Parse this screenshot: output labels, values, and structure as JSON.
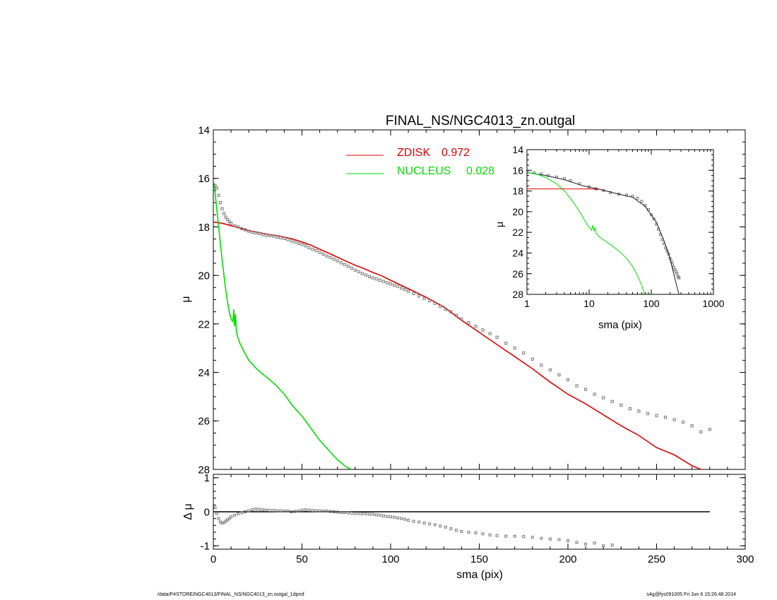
{
  "chart_data": [
    {
      "type": "line",
      "title": "FINAL_NS/NGC4013_zn.outgal",
      "xlabel": "",
      "ylabel": "μ",
      "xlim": [
        0,
        300
      ],
      "ylim": [
        28,
        14
      ],
      "y_inverted": true,
      "xticks": [
        "0",
        "50",
        "100",
        "150",
        "200",
        "250",
        "300"
      ],
      "yticks": [
        "14",
        "16",
        "18",
        "20",
        "22",
        "24",
        "26",
        "28"
      ],
      "legend_position": "top-center",
      "legend": [
        {
          "name": "ZDISK",
          "value": "0.972",
          "color": "#e00000"
        },
        {
          "name": "NUCLEUS",
          "value": "0.028",
          "color": "#00dd00"
        }
      ],
      "series": [
        {
          "name": "ZDISK",
          "style": "line",
          "color": "#e00000",
          "x": [
            0,
            5,
            10,
            15,
            20,
            25,
            30,
            35,
            40,
            45,
            50,
            55,
            60,
            65,
            70,
            75,
            80,
            85,
            90,
            95,
            100,
            110,
            120,
            130,
            140,
            150,
            160,
            170,
            180,
            190,
            200,
            210,
            220,
            230,
            240,
            250,
            260,
            270,
            275
          ],
          "y": [
            17.8,
            17.85,
            17.95,
            18.05,
            18.15,
            18.22,
            18.3,
            18.35,
            18.42,
            18.5,
            18.62,
            18.75,
            18.92,
            19.08,
            19.25,
            19.42,
            19.58,
            19.72,
            19.88,
            20.02,
            20.2,
            20.55,
            20.9,
            21.3,
            21.85,
            22.35,
            22.85,
            23.35,
            23.85,
            24.4,
            24.9,
            25.3,
            25.75,
            26.2,
            26.6,
            27.1,
            27.4,
            27.85,
            28.0
          ]
        },
        {
          "name": "NUCLEUS",
          "style": "line",
          "color": "#00dd00",
          "x": [
            0.5,
            1,
            2,
            3,
            4,
            5,
            6,
            7,
            8,
            9,
            10,
            11,
            11.5,
            12,
            12.5,
            13,
            14,
            15,
            17,
            20,
            25,
            30,
            35,
            40,
            45,
            50,
            55,
            60,
            65,
            70,
            75,
            78
          ],
          "y": [
            16.2,
            16.6,
            17.3,
            18.0,
            18.7,
            19.4,
            20.0,
            20.6,
            21.1,
            21.5,
            21.8,
            21.9,
            21.4,
            22.1,
            21.6,
            22.3,
            22.6,
            22.8,
            23.1,
            23.5,
            23.9,
            24.2,
            24.5,
            24.9,
            25.4,
            25.8,
            26.3,
            26.8,
            27.2,
            27.6,
            27.9,
            28.0
          ]
        },
        {
          "name": "",
          "style": "points",
          "color": "#777777",
          "x": [
            1,
            2,
            3,
            4,
            5,
            6,
            7,
            8,
            9,
            10,
            12,
            14,
            16,
            18,
            20,
            22,
            24,
            26,
            28,
            30,
            32,
            34,
            36,
            38,
            40,
            42,
            44,
            46,
            48,
            50,
            52,
            54,
            56,
            58,
            60,
            62,
            64,
            66,
            68,
            70,
            72,
            74,
            76,
            78,
            80,
            82,
            84,
            86,
            88,
            90,
            92,
            94,
            96,
            98,
            100,
            102,
            104,
            106,
            108,
            110,
            113,
            116,
            119,
            122,
            125,
            128,
            131,
            134,
            137,
            140,
            144,
            148,
            152,
            156,
            160,
            165,
            170,
            175,
            180,
            185,
            190,
            195,
            200,
            205,
            210,
            215,
            220,
            225,
            230,
            235,
            240,
            245,
            250,
            255,
            260,
            265,
            270,
            275,
            280
          ],
          "y": [
            16.3,
            16.4,
            16.7,
            17.0,
            17.25,
            17.45,
            17.6,
            17.7,
            17.78,
            17.85,
            17.95,
            18.0,
            18.07,
            18.12,
            18.18,
            18.22,
            18.25,
            18.28,
            18.32,
            18.35,
            18.36,
            18.38,
            18.42,
            18.45,
            18.48,
            18.52,
            18.58,
            18.62,
            18.68,
            18.72,
            18.78,
            18.86,
            18.92,
            18.98,
            19.05,
            19.12,
            19.2,
            19.26,
            19.33,
            19.4,
            19.48,
            19.55,
            19.62,
            19.7,
            19.78,
            19.85,
            19.92,
            19.98,
            20.05,
            20.1,
            20.15,
            20.2,
            20.25,
            20.3,
            20.35,
            20.4,
            20.45,
            20.52,
            20.58,
            20.65,
            20.75,
            20.85,
            20.95,
            21.05,
            21.15,
            21.28,
            21.4,
            21.5,
            21.65,
            21.8,
            21.95,
            22.1,
            22.25,
            22.4,
            22.55,
            22.8,
            23.0,
            23.2,
            23.45,
            23.7,
            23.9,
            24.1,
            24.3,
            24.55,
            24.7,
            24.9,
            25.05,
            25.2,
            25.35,
            25.5,
            25.6,
            25.7,
            25.78,
            25.85,
            25.95,
            26.05,
            26.2,
            26.45,
            26.35
          ]
        }
      ]
    },
    {
      "type": "line",
      "title": "",
      "xlabel": "sma (pix)",
      "ylabel": "Δ μ",
      "xlim": [
        0,
        300
      ],
      "ylim": [
        -1.1,
        1.1
      ],
      "xticks": [
        "0",
        "50",
        "100",
        "150",
        "200",
        "250",
        "300"
      ],
      "yticks": [
        "1",
        "0",
        "-1"
      ],
      "series": [
        {
          "name": "",
          "style": "line",
          "color": "#000000",
          "x": [
            0,
            280
          ],
          "y": [
            0,
            0
          ]
        },
        {
          "name": "",
          "style": "points",
          "color": "#777777",
          "x": [
            1,
            2,
            3,
            4,
            5,
            6,
            7,
            8,
            9,
            10,
            12,
            14,
            16,
            18,
            20,
            22,
            24,
            26,
            28,
            30,
            32,
            34,
            36,
            38,
            40,
            42,
            44,
            46,
            48,
            50,
            52,
            54,
            56,
            58,
            60,
            62,
            64,
            66,
            68,
            70,
            72,
            74,
            76,
            78,
            80,
            82,
            84,
            86,
            88,
            90,
            92,
            94,
            96,
            98,
            100,
            102,
            104,
            106,
            108,
            110,
            113,
            116,
            119,
            122,
            125,
            128,
            131,
            134,
            137,
            140,
            144,
            148,
            152,
            156,
            160,
            165,
            170,
            175,
            180,
            185,
            190,
            195,
            200,
            205,
            210,
            215,
            220,
            225
          ],
          "y": [
            0.12,
            -0.05,
            -0.2,
            -0.3,
            -0.33,
            -0.32,
            -0.28,
            -0.24,
            -0.2,
            -0.15,
            -0.1,
            -0.06,
            -0.03,
            0.0,
            0.03,
            0.06,
            0.08,
            0.07,
            0.06,
            0.05,
            0.04,
            0.04,
            0.03,
            0.03,
            0.02,
            0.02,
            0.0,
            0.01,
            0.02,
            0.05,
            0.06,
            0.05,
            0.04,
            0.03,
            0.03,
            0.02,
            0.02,
            0.01,
            0.0,
            -0.01,
            -0.02,
            -0.02,
            -0.03,
            -0.04,
            -0.05,
            -0.05,
            -0.06,
            -0.06,
            -0.07,
            -0.07,
            -0.09,
            -0.1,
            -0.12,
            -0.14,
            -0.15,
            -0.16,
            -0.18,
            -0.2,
            -0.22,
            -0.25,
            -0.28,
            -0.3,
            -0.33,
            -0.36,
            -0.38,
            -0.42,
            -0.45,
            -0.5,
            -0.54,
            -0.58,
            -0.6,
            -0.62,
            -0.65,
            -0.68,
            -0.7,
            -0.72,
            -0.72,
            -0.73,
            -0.75,
            -0.78,
            -0.8,
            -0.82,
            -0.85,
            -0.9,
            -0.95,
            -0.92,
            -1.0,
            -0.98
          ]
        }
      ]
    },
    {
      "type": "line",
      "title": "",
      "xlabel": "sma (pix)",
      "ylabel": "μ",
      "x_scale": "log",
      "xlim": [
        1,
        1000
      ],
      "ylim": [
        28,
        14
      ],
      "y_inverted": true,
      "xticks": [
        "1",
        "10",
        "100",
        "1000"
      ],
      "yticks": [
        "14",
        "16",
        "18",
        "20",
        "22",
        "24",
        "26",
        "28"
      ],
      "series": [
        {
          "name": "",
          "style": "points",
          "color": "#777777",
          "x": [
            1,
            1.3,
            1.7,
            2.2,
            3,
            4,
            5,
            7,
            10,
            13,
            17,
            22,
            30,
            40,
            50,
            60,
            70,
            80,
            90,
            100,
            110,
            120,
            130,
            140,
            150,
            160,
            170,
            180,
            190,
            200,
            210,
            220,
            230,
            240,
            250,
            260,
            270,
            280
          ],
          "y": [
            16.2,
            16.25,
            16.35,
            16.5,
            16.65,
            16.8,
            17.0,
            17.3,
            17.6,
            17.8,
            17.95,
            18.15,
            18.3,
            18.4,
            18.5,
            18.7,
            19.0,
            19.4,
            19.8,
            20.3,
            20.7,
            21.2,
            21.7,
            22.2,
            22.7,
            23.1,
            23.5,
            23.8,
            24.1,
            24.5,
            24.8,
            25.1,
            25.4,
            25.6,
            25.8,
            26.0,
            26.3,
            26.4
          ]
        },
        {
          "name": "",
          "style": "line",
          "color": "#1a1a2e",
          "x": [
            1,
            2,
            4,
            8,
            15,
            30,
            50,
            80,
            120,
            160,
            200,
            240,
            270,
            280
          ],
          "y": [
            16.2,
            16.5,
            16.9,
            17.5,
            17.85,
            18.3,
            18.6,
            19.5,
            21.0,
            22.8,
            24.5,
            26.5,
            27.7,
            28.0
          ]
        },
        {
          "name": "ZDISK",
          "style": "line",
          "color": "#e00000",
          "x": [
            1,
            2,
            4,
            8,
            12,
            15
          ],
          "y": [
            17.8,
            17.8,
            17.8,
            17.8,
            17.82,
            17.85
          ]
        },
        {
          "name": "NUCLEUS",
          "style": "line",
          "color": "#00dd00",
          "x": [
            1,
            1.5,
            2,
            3,
            4,
            5,
            6,
            7,
            8,
            9,
            10,
            11,
            11.5,
            12,
            12.5,
            13,
            15,
            20,
            30,
            40,
            50,
            60,
            70,
            78
          ],
          "y": [
            16.2,
            16.4,
            16.7,
            17.3,
            18.0,
            18.7,
            19.4,
            20.0,
            20.6,
            21.1,
            21.5,
            21.8,
            21.3,
            21.9,
            21.5,
            22.1,
            22.5,
            23.0,
            23.8,
            24.5,
            25.3,
            26.2,
            27.1,
            28.0
          ]
        }
      ]
    }
  ],
  "footer": {
    "left": "/data/P4STORE/NGC4013/FINAL_NS/NGC4013_zn.outgal_1dprof",
    "right": "s4g@fys091005  Fri Jun  6 15:26:48 2014"
  }
}
